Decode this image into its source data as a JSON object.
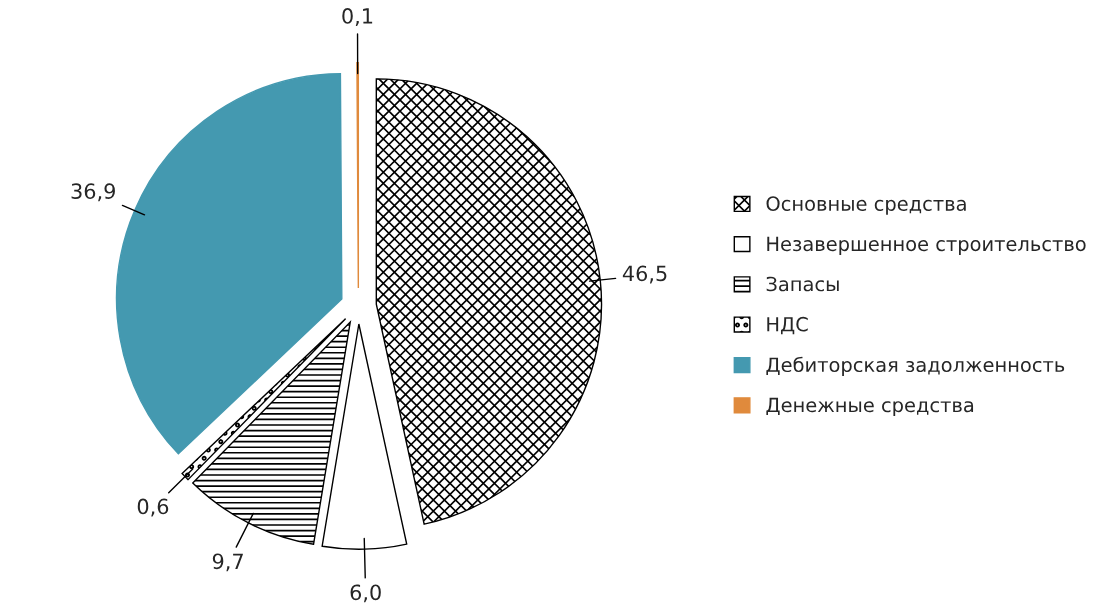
{
  "chart_data": {
    "type": "pie",
    "categories": [
      "Основные средства",
      "Незавершенное строительство",
      "Запасы",
      "НДС",
      "Дебиторская задолженность",
      "Денежные средства"
    ],
    "values": [
      46.5,
      6.0,
      9.7,
      0.6,
      36.9,
      0.1
    ],
    "value_labels": [
      "46,5",
      "6,0",
      "9,7",
      "0,6",
      "36,9",
      "0,1"
    ],
    "colors": [
      "#000000",
      "#000000",
      "#000000",
      "#000000",
      "#4499b0",
      "#e08a3c"
    ],
    "legend": "right"
  }
}
